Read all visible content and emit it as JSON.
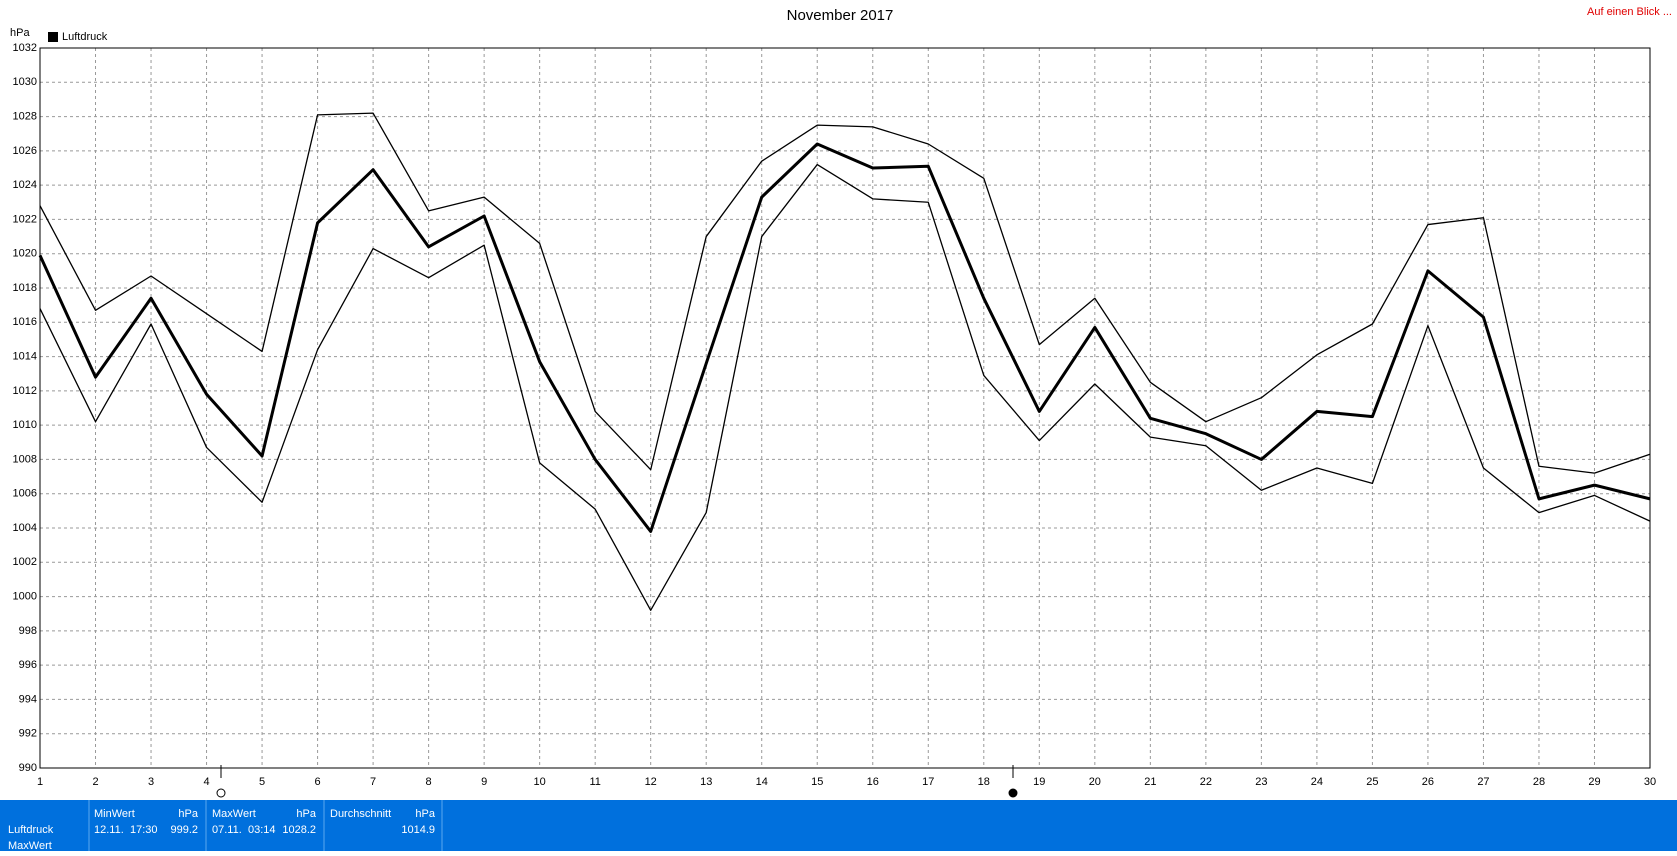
{
  "chart_data": {
    "type": "line",
    "title": "November 2017",
    "link": "Auf einen Blick ...",
    "y_label": "hPa",
    "x": [
      1,
      2,
      3,
      4,
      5,
      6,
      7,
      8,
      9,
      10,
      11,
      12,
      13,
      14,
      15,
      16,
      17,
      18,
      19,
      20,
      21,
      22,
      23,
      24,
      25,
      26,
      27,
      28,
      29,
      30
    ],
    "xlim": [
      1,
      30
    ],
    "xticks": [
      1,
      2,
      3,
      4,
      5,
      6,
      7,
      8,
      9,
      10,
      11,
      12,
      13,
      14,
      15,
      16,
      17,
      18,
      19,
      20,
      21,
      22,
      23,
      24,
      25,
      26,
      27,
      28,
      29,
      30
    ],
    "ylim": [
      990,
      1032
    ],
    "yticks": [
      990,
      992,
      994,
      996,
      998,
      1000,
      1002,
      1004,
      1006,
      1008,
      1010,
      1012,
      1014,
      1016,
      1018,
      1020,
      1022,
      1024,
      1026,
      1028,
      1030,
      1032
    ],
    "grid": true,
    "series": [
      {
        "color": "#000000",
        "values": [
          1022.8,
          1016.7,
          1018.7,
          1016.5,
          1014.3,
          1028.1,
          1028.2,
          1022.5,
          1023.3,
          1020.6,
          1010.8,
          1007.4,
          1021.0,
          1025.4,
          1027.5,
          1027.4,
          1026.4,
          1024.4,
          1014.7,
          1017.4,
          1012.5,
          1010.2,
          1011.6,
          1014.1,
          1015.9,
          1021.7,
          1022.1,
          1007.6,
          1007.2,
          1008.3
        ]
      },
      {
        "name": "Luftdruck",
        "color": "#000000",
        "values": [
          1019.9,
          1012.8,
          1017.4,
          1011.8,
          1008.2,
          1021.8,
          1024.9,
          1020.4,
          1022.2,
          1013.7,
          1008.0,
          1003.8,
          1013.6,
          1023.3,
          1026.4,
          1025.0,
          1025.1,
          1017.4,
          1010.8,
          1015.7,
          1010.4,
          1009.5,
          1008.0,
          1010.8,
          1010.5,
          1019.0,
          1016.3,
          1005.7,
          1006.5,
          1005.7
        ]
      },
      {
        "color": "#000000",
        "values": [
          1016.8,
          1010.2,
          1015.9,
          1008.7,
          1005.5,
          1014.4,
          1020.3,
          1018.6,
          1020.5,
          1007.8,
          1005.1,
          999.2,
          1004.9,
          1021.0,
          1025.2,
          1023.2,
          1023.0,
          1012.9,
          1009.1,
          1012.4,
          1009.3,
          1008.8,
          1006.2,
          1007.5,
          1006.6,
          1015.8,
          1007.5,
          1004.9,
          1005.9,
          1004.4
        ]
      }
    ]
  },
  "table": {
    "row_labels": [
      "Luftdruck",
      "MaxWert"
    ],
    "columns": [
      {
        "title": "MinWert",
        "unit": "hPa",
        "date": "12.11.",
        "time": "17:30",
        "value": 999.2
      },
      {
        "title": "MaxWert",
        "unit": "hPa",
        "date": "07.11.",
        "time": "03:14",
        "value": 1028.2
      },
      {
        "title": "Durchschnitt",
        "unit": "hPa",
        "value": 1014.9
      }
    ]
  }
}
